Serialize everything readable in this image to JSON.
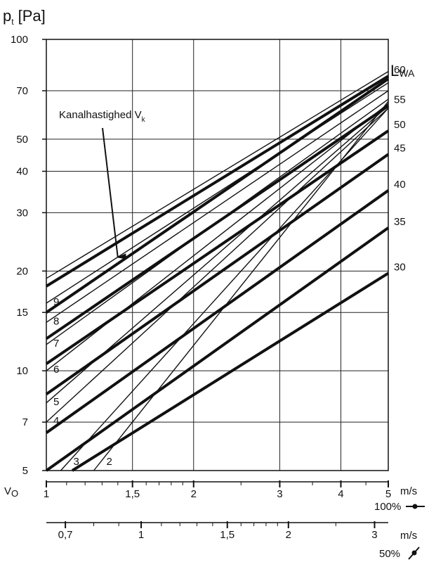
{
  "chart_data": {
    "type": "line",
    "title": "",
    "ylabel": "p",
    "ylabel_sub": "t",
    "ylabel_unit": "[Pa]",
    "y_scale": "log",
    "ylim": [
      5,
      100
    ],
    "y_ticks": [
      5,
      7,
      10,
      15,
      20,
      30,
      40,
      50,
      70,
      100
    ],
    "y_tick_labels": [
      "5",
      "7",
      "10",
      "15",
      "20",
      "30",
      "40",
      "50",
      "70",
      "100"
    ],
    "x_scale": "log",
    "xlim": [
      1,
      5
    ],
    "x_axis_name": "V",
    "x_axis_sub": "O",
    "x_ticks": [
      1,
      1.5,
      2,
      3,
      4,
      5
    ],
    "x_tick_labels": [
      "1",
      "1,5",
      "2",
      "3",
      "4",
      "5"
    ],
    "x_unit": "m/s",
    "x_setting": "100%",
    "x2_ticks": [
      0.7,
      1,
      1.5,
      2,
      3
    ],
    "x2_tick_labels": [
      "0,7",
      "1",
      "1,5",
      "2",
      "3"
    ],
    "x2_unit": "m/s",
    "x2_setting": "50%",
    "x2_per_x": 0.64,
    "lwa_title": "L",
    "lwa_sub": "WA",
    "sound_series": [
      {
        "name": "30",
        "points": [
          [
            1.13,
            5
          ],
          [
            5,
            19.7
          ]
        ]
      },
      {
        "name": "35",
        "points": [
          [
            1,
            5
          ],
          [
            5,
            27
          ]
        ]
      },
      {
        "name": "40",
        "points": [
          [
            1,
            6.5
          ],
          [
            5,
            35
          ]
        ]
      },
      {
        "name": "45",
        "points": [
          [
            1,
            8.5
          ],
          [
            5,
            45
          ]
        ]
      },
      {
        "name": "50",
        "points": [
          [
            1,
            10.5
          ],
          [
            5,
            53
          ]
        ]
      },
      {
        "name": "55",
        "points": [
          [
            1,
            12.5
          ],
          [
            5,
            63
          ]
        ]
      },
      {
        "name": "",
        "points": [
          [
            1,
            15
          ],
          [
            5,
            76
          ]
        ]
      },
      {
        "name": "60",
        "points": [
          [
            1,
            18
          ],
          [
            5,
            77.5
          ]
        ]
      }
    ],
    "velocity_series": [
      {
        "name": "2",
        "points": [
          [
            1.25,
            5
          ],
          [
            5,
            65
          ]
        ]
      },
      {
        "name": "3",
        "points": [
          [
            1.07,
            5
          ],
          [
            5,
            62
          ]
        ]
      },
      {
        "name": "4",
        "points": [
          [
            1,
            7
          ],
          [
            5,
            62
          ]
        ]
      },
      {
        "name": "5",
        "points": [
          [
            1,
            8
          ],
          [
            5,
            63
          ]
        ]
      },
      {
        "name": "6",
        "points": [
          [
            1,
            10
          ],
          [
            5,
            64
          ]
        ]
      },
      {
        "name": "7",
        "points": [
          [
            1,
            12
          ],
          [
            5,
            66
          ]
        ]
      },
      {
        "name": "8",
        "points": [
          [
            1,
            14
          ],
          [
            5,
            70
          ]
        ]
      },
      {
        "name": "9",
        "points": [
          [
            1,
            16
          ],
          [
            5,
            74
          ]
        ]
      },
      {
        "name": "",
        "points": [
          [
            1,
            19
          ],
          [
            5,
            80
          ]
        ]
      }
    ],
    "annotation": {
      "text": "Kanalhastighed V",
      "sub": "k",
      "target": [
        1.4,
        22
      ]
    }
  }
}
